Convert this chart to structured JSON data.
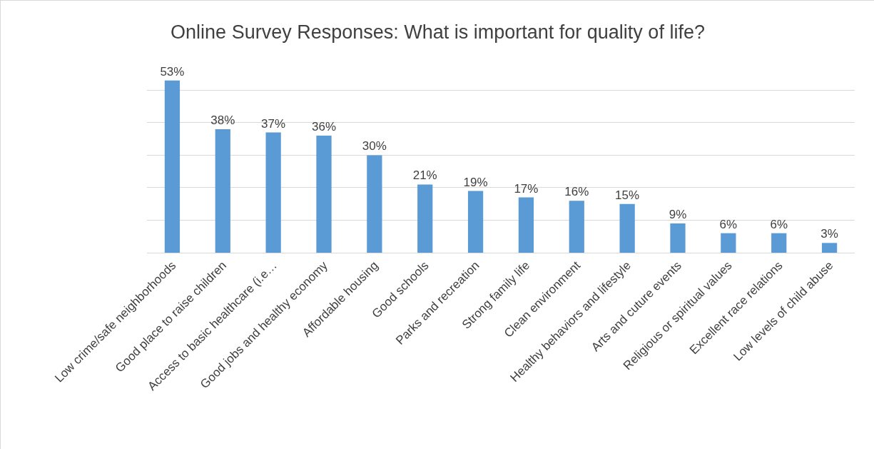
{
  "chart_data": {
    "type": "bar",
    "title": "Online Survey Responses: What is important for quality of life?",
    "categories": [
      "Low crime/safe neighborhoods",
      "Good place to raise children",
      "Access to basic healthcare (i.e…",
      "Good jobs and healthy economy",
      "Affordable housing",
      "Good schools",
      "Parks and recreation",
      "Strong family life",
      "Clean environment",
      "Healthy behaviors and lifestyle",
      "Arts and cuture events",
      "Religious or spiritual values",
      "Excellent race relations",
      "Low levels of child abuse"
    ],
    "values": [
      53,
      38,
      37,
      36,
      30,
      21,
      19,
      17,
      16,
      15,
      9,
      6,
      6,
      3
    ],
    "value_labels": [
      "53%",
      "38%",
      "37%",
      "36%",
      "30%",
      "21%",
      "19%",
      "17%",
      "16%",
      "15%",
      "9%",
      "6%",
      "6%",
      "3%"
    ],
    "color": "#5b9bd5",
    "grid": "y",
    "tick_labels": "x",
    "legend": false
  }
}
